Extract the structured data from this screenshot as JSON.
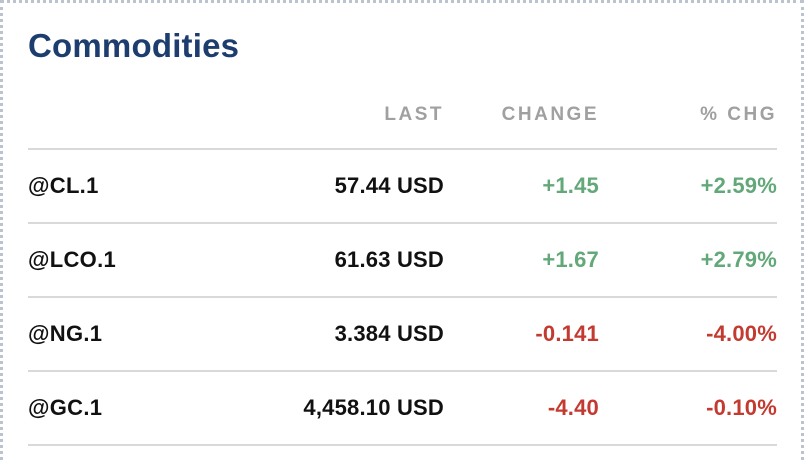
{
  "card": {
    "title": "Commodities"
  },
  "table": {
    "columns": [
      "LAST",
      "CHANGE",
      "% CHG"
    ],
    "rows": [
      {
        "symbol": "@CL.1",
        "last": "57.44 USD",
        "change": "+1.45",
        "pct_chg": "+2.59%",
        "direction": "up"
      },
      {
        "symbol": "@LCO.1",
        "last": "61.63 USD",
        "change": "+1.67",
        "pct_chg": "+2.79%",
        "direction": "up"
      },
      {
        "symbol": "@NG.1",
        "last": "3.384 USD",
        "change": "-0.141",
        "pct_chg": "-4.00%",
        "direction": "down"
      },
      {
        "symbol": "@GC.1",
        "last": "4,458.10 USD",
        "change": "-4.40",
        "pct_chg": "-0.10%",
        "direction": "down"
      }
    ]
  },
  "colors": {
    "up": "#62a878",
    "down": "#c33a30",
    "title": "#1d3d6e",
    "header": "#a0a0a0",
    "divider": "#d9d9d9",
    "border": "#bcc3cf"
  }
}
